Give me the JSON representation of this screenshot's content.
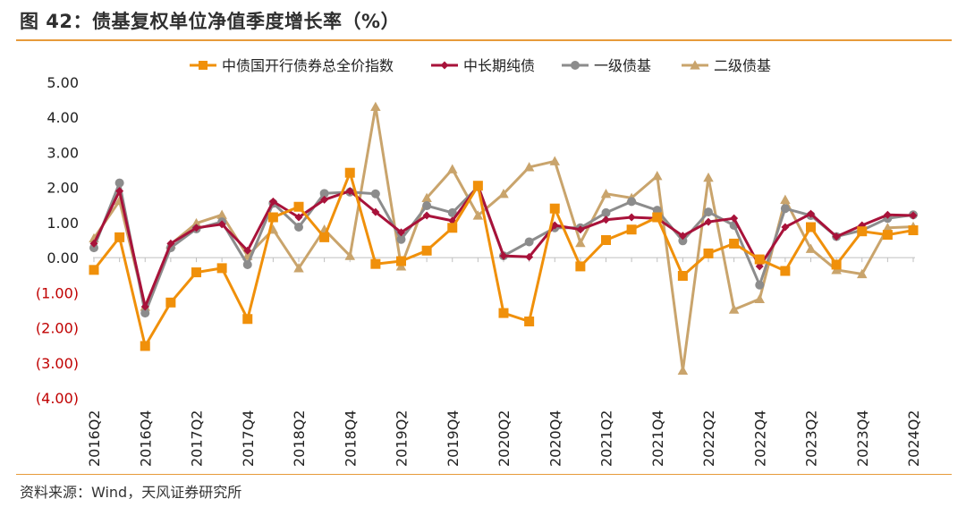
{
  "figure": {
    "title": "图 42：债基复权单位净值季度增长率（%）",
    "source": "资料来源：Wind，天风证券研究所"
  },
  "colors": {
    "accent": "#e79a3a",
    "negative_tick": "#c00000",
    "axis": "#bfbfbf"
  },
  "chart_data": {
    "type": "line",
    "title": "",
    "xlabel": "",
    "ylabel": "",
    "ylim": [
      -4,
      5
    ],
    "yticks": [
      5,
      4,
      3,
      2,
      1,
      0,
      -1,
      -2,
      -3,
      -4
    ],
    "ytick_labels": [
      "5.00",
      "4.00",
      "3.00",
      "2.00",
      "1.00",
      "0.00",
      "(1.00)",
      "(2.00)",
      "(3.00)",
      "(4.00)"
    ],
    "grid": false,
    "legend": "top",
    "x": [
      "2016Q2",
      "2016Q3",
      "2016Q4",
      "2017Q1",
      "2017Q2",
      "2017Q3",
      "2017Q4",
      "2018Q1",
      "2018Q2",
      "2018Q3",
      "2018Q4",
      "2019Q1",
      "2019Q2",
      "2019Q3",
      "2019Q4",
      "2020Q1",
      "2020Q2",
      "2020Q3",
      "2020Q4",
      "2021Q1",
      "2021Q2",
      "2021Q3",
      "2021Q4",
      "2022Q1",
      "2022Q2",
      "2022Q3",
      "2022Q4",
      "2023Q1",
      "2023Q2",
      "2023Q3",
      "2023Q4",
      "2024Q1",
      "2024Q2"
    ],
    "xtick_labels": [
      "2016Q2",
      "2016Q4",
      "2017Q2",
      "2017Q4",
      "2018Q2",
      "2018Q4",
      "2019Q2",
      "2019Q4",
      "2020Q2",
      "2020Q4",
      "2021Q2",
      "2021Q4",
      "2022Q2",
      "2022Q4",
      "2023Q2",
      "2023Q4",
      "2024Q2"
    ],
    "series": [
      {
        "name": "中债国开行债券总全价指数",
        "color": "#f0900a",
        "marker": "square",
        "values": [
          -0.35,
          0.58,
          -2.52,
          -1.28,
          -0.42,
          -0.3,
          -1.75,
          1.15,
          1.45,
          0.58,
          2.42,
          -0.18,
          -0.1,
          0.2,
          0.85,
          2.05,
          -1.58,
          -1.82,
          1.4,
          -0.25,
          0.5,
          0.8,
          1.15,
          -0.52,
          0.12,
          0.4,
          -0.05,
          -0.38,
          0.87,
          -0.2,
          0.75,
          0.65,
          0.78
        ]
      },
      {
        "name": "中长期纯债",
        "color": "#a8123a",
        "marker": "diamond",
        "values": [
          0.4,
          1.9,
          -1.4,
          0.4,
          0.85,
          0.95,
          0.2,
          1.6,
          1.15,
          1.65,
          1.9,
          1.3,
          0.72,
          1.2,
          1.05,
          2.05,
          0.05,
          0.02,
          0.92,
          0.8,
          1.08,
          1.15,
          1.12,
          0.62,
          1.02,
          1.12,
          -0.25,
          0.87,
          1.25,
          0.6,
          0.92,
          1.22,
          1.2
        ]
      },
      {
        "name": "一级债基",
        "color": "#8c8c8c",
        "marker": "circle",
        "values": [
          0.28,
          2.13,
          -1.58,
          0.28,
          0.82,
          1.02,
          -0.2,
          1.55,
          0.87,
          1.83,
          1.87,
          1.82,
          0.52,
          1.48,
          1.28,
          2.02,
          0.05,
          0.45,
          0.85,
          0.85,
          1.28,
          1.6,
          1.35,
          0.48,
          1.3,
          0.92,
          -0.78,
          1.4,
          1.2,
          0.6,
          0.78,
          1.12,
          1.22
        ]
      },
      {
        "name": "二级债基",
        "color": "#c9a46c",
        "marker": "triangle",
        "values": [
          0.55,
          1.62,
          -1.4,
          0.38,
          0.98,
          1.22,
          0.05,
          0.8,
          -0.3,
          0.8,
          0.05,
          4.3,
          -0.25,
          1.7,
          2.52,
          1.2,
          1.82,
          2.58,
          2.75,
          0.42,
          1.82,
          1.7,
          2.33,
          -3.22,
          2.28,
          -1.48,
          -1.18,
          1.65,
          0.25,
          -0.35,
          -0.47,
          0.85,
          0.88
        ]
      }
    ]
  }
}
